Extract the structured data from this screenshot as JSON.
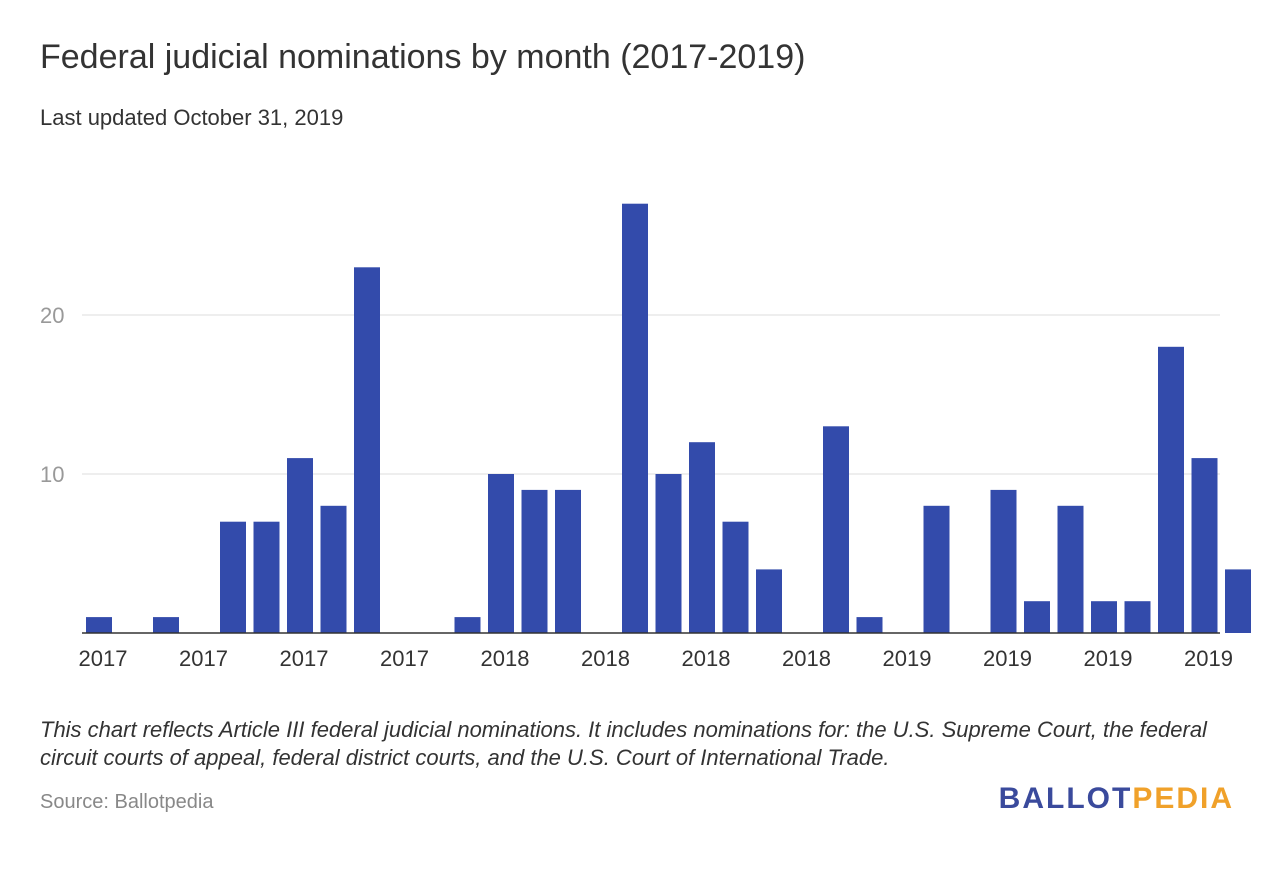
{
  "title": "Federal judicial nominations by month (2017-2019)",
  "subtitle": "Last updated October 31, 2019",
  "note": "This chart reflects Article III federal judicial nominations. It includes nominations for: the U.S. Supreme Court, the federal circuit courts of appeal, federal district courts, and the U.S. Court of International Trade.",
  "source": "Source: Ballotpedia",
  "logo": {
    "part1": "BALLOT",
    "part2": "PEDIA"
  },
  "colors": {
    "bar": "#334bab",
    "grid": "#dddddd",
    "axis": "#333333",
    "logo_blue": "#3a4a9c",
    "logo_orange": "#f0a12a"
  },
  "chart_data": {
    "type": "bar",
    "title": "Federal judicial nominations by month (2017-2019)",
    "subtitle": "Last updated October 31, 2019",
    "xlabel": "",
    "ylabel": "",
    "ylim": [
      0,
      30
    ],
    "yticks": [
      10,
      20
    ],
    "grid": true,
    "legend": "none",
    "x_tick_labels": [
      "2017",
      "2017",
      "2017",
      "2017",
      "2018",
      "2018",
      "2018",
      "2018",
      "2019",
      "2019",
      "2019",
      "2019"
    ],
    "values": [
      1,
      0,
      1,
      0,
      7,
      7,
      11,
      8,
      23,
      0,
      0,
      1,
      10,
      9,
      9,
      0,
      27,
      10,
      12,
      7,
      4,
      0,
      13,
      1,
      0,
      8,
      0,
      9,
      2,
      8,
      2,
      2,
      18,
      11,
      4
    ]
  }
}
